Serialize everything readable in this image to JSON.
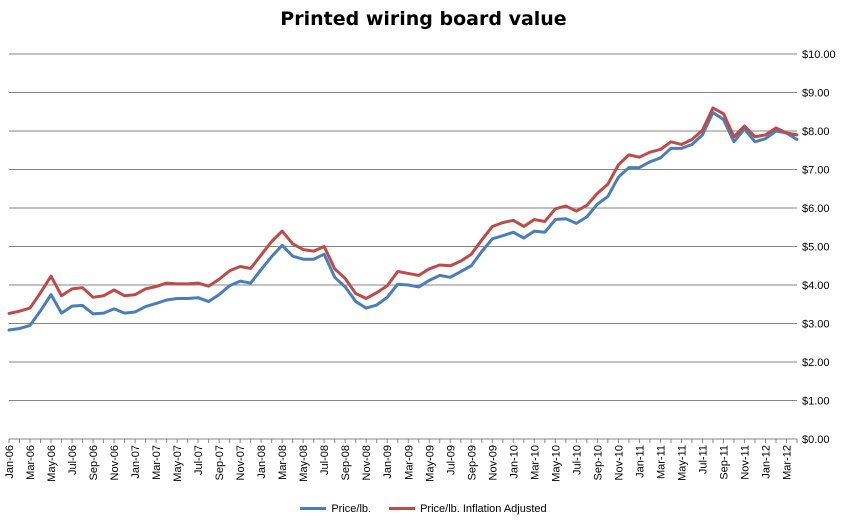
{
  "chart_data": {
    "type": "line",
    "title": "Printed wiring board value",
    "xlabel": "",
    "ylabel": "",
    "ylim": [
      0,
      10
    ],
    "y_ticks": [
      "$0.00",
      "$1.00",
      "$2.00",
      "$3.00",
      "$4.00",
      "$5.00",
      "$6.00",
      "$7.00",
      "$8.00",
      "$9.00",
      "$10.00"
    ],
    "y_axis_position": "right",
    "grid": "horizontal",
    "legend_position": "bottom",
    "categories": [
      "Jan-06",
      "Feb-06",
      "Mar-06",
      "Apr-06",
      "May-06",
      "Jun-06",
      "Jul-06",
      "Aug-06",
      "Sep-06",
      "Oct-06",
      "Nov-06",
      "Dec-06",
      "Jan-07",
      "Feb-07",
      "Mar-07",
      "Apr-07",
      "May-07",
      "Jun-07",
      "Jul-07",
      "Aug-07",
      "Sep-07",
      "Oct-07",
      "Nov-07",
      "Dec-07",
      "Jan-08",
      "Feb-08",
      "Mar-08",
      "Apr-08",
      "May-08",
      "Jun-08",
      "Jul-08",
      "Aug-08",
      "Sep-08",
      "Oct-08",
      "Nov-08",
      "Dec-08",
      "Jan-09",
      "Feb-09",
      "Mar-09",
      "Apr-09",
      "May-09",
      "Jun-09",
      "Jul-09",
      "Aug-09",
      "Sep-09",
      "Oct-09",
      "Nov-09",
      "Dec-09",
      "Jan-10",
      "Feb-10",
      "Mar-10",
      "Apr-10",
      "May-10",
      "Jun-10",
      "Jul-10",
      "Aug-10",
      "Sep-10",
      "Oct-10",
      "Nov-10",
      "Dec-10",
      "Jan-11",
      "Feb-11",
      "Mar-11",
      "Apr-11",
      "May-11",
      "Jun-11",
      "Jul-11",
      "Aug-11",
      "Sep-11",
      "Oct-11",
      "Nov-11",
      "Dec-11",
      "Jan-12",
      "Feb-12",
      "Mar-12",
      "Apr-12"
    ],
    "x_tick_labels": [
      "Jan-06",
      "Mar-06",
      "May-06",
      "Jul-06",
      "Sep-06",
      "Nov-06",
      "Jan-07",
      "Mar-07",
      "May-07",
      "Jul-07",
      "Sep-07",
      "Nov-07",
      "Jan-08",
      "Mar-08",
      "May-08",
      "Jul-08",
      "Sep-08",
      "Nov-08",
      "Jan-09",
      "Mar-09",
      "May-09",
      "Jul-09",
      "Sep-09",
      "Nov-09",
      "Jan-10",
      "Mar-10",
      "May-10",
      "Jul-10",
      "Sep-10",
      "Nov-10",
      "Jan-11",
      "Mar-11",
      "May-11",
      "Jul-11",
      "Sep-11",
      "Nov-11",
      "Jan-12",
      "Mar-12"
    ],
    "series": [
      {
        "name": "Price/lb.",
        "color": "#4a7ebb",
        "values": [
          2.83,
          2.87,
          2.95,
          3.33,
          3.75,
          3.27,
          3.45,
          3.47,
          3.25,
          3.27,
          3.38,
          3.27,
          3.3,
          3.44,
          3.52,
          3.61,
          3.65,
          3.65,
          3.67,
          3.57,
          3.75,
          3.98,
          4.1,
          4.05,
          4.4,
          4.74,
          5.03,
          4.75,
          4.67,
          4.67,
          4.8,
          4.2,
          3.95,
          3.57,
          3.4,
          3.48,
          3.68,
          4.02,
          4.0,
          3.95,
          4.12,
          4.25,
          4.2,
          4.35,
          4.5,
          4.87,
          5.2,
          5.28,
          5.37,
          5.22,
          5.4,
          5.37,
          5.7,
          5.72,
          5.6,
          5.77,
          6.1,
          6.3,
          6.8,
          7.05,
          7.05,
          7.2,
          7.3,
          7.55,
          7.55,
          7.65,
          7.9,
          8.48,
          8.3,
          7.72,
          8.05,
          7.72,
          7.8,
          8.0,
          7.95,
          7.78
        ]
      },
      {
        "name": "Price/lb. Inflation Adjusted",
        "color": "#be4b48",
        "values": [
          3.26,
          3.32,
          3.4,
          3.8,
          4.23,
          3.72,
          3.9,
          3.93,
          3.68,
          3.72,
          3.87,
          3.72,
          3.75,
          3.9,
          3.96,
          4.05,
          4.03,
          4.03,
          4.05,
          3.97,
          4.15,
          4.37,
          4.48,
          4.43,
          4.78,
          5.13,
          5.4,
          5.07,
          4.92,
          4.88,
          5.0,
          4.42,
          4.17,
          3.78,
          3.65,
          3.8,
          3.98,
          4.35,
          4.3,
          4.25,
          4.42,
          4.52,
          4.5,
          4.62,
          4.8,
          5.17,
          5.52,
          5.62,
          5.68,
          5.52,
          5.7,
          5.65,
          5.98,
          6.05,
          5.92,
          6.07,
          6.38,
          6.62,
          7.12,
          7.38,
          7.32,
          7.45,
          7.52,
          7.72,
          7.65,
          7.78,
          8.02,
          8.6,
          8.45,
          7.85,
          8.13,
          7.85,
          7.9,
          8.08,
          7.95,
          7.9
        ]
      }
    ]
  }
}
